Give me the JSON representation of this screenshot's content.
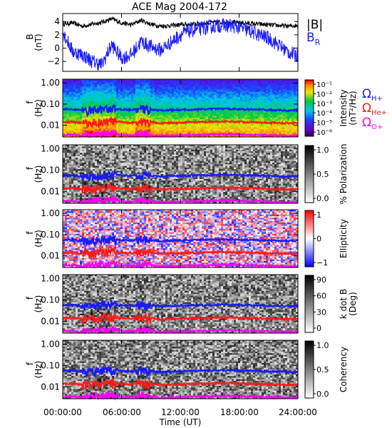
{
  "title": "ACE Mag 2004-172",
  "colors": {
    "blue": "#1a1aff",
    "red": "#ff1a1a",
    "magenta": "#ff00ff",
    "black": "#000000"
  },
  "legend": {
    "b_mag": "|B|",
    "b_r": "B",
    "b_r_sub": "R",
    "gyro": [
      {
        "symbol": "Ω",
        "sub": "H+",
        "color": "#1a1aff"
      },
      {
        "symbol": "Ω",
        "sub": "He+",
        "color": "#ff1a1a"
      },
      {
        "symbol": "Ω",
        "sub": "O+",
        "color": "#ff00ff"
      }
    ]
  },
  "x_axis": {
    "label": "Time (UT)",
    "ticks": [
      "00:00:00",
      "06:00:00",
      "12:00:00",
      "18:00:00",
      "24:00:00"
    ],
    "range_hours": [
      0,
      24
    ]
  },
  "panels": [
    {
      "id": "bfield",
      "ylabel": "B",
      "ylabel2": "(nT)",
      "ticks": [
        "4",
        "2",
        "0",
        "−2"
      ],
      "tick_values": [
        4,
        2,
        0,
        -2
      ],
      "ylim": [
        -3.5,
        5.2
      ]
    },
    {
      "id": "intensity",
      "ylabel": "f",
      "ylabel2": "(Hz)",
      "ticks": [
        "1.00",
        "0.10",
        "0.01"
      ],
      "cbar_label": "Intensity",
      "cbar_label2": "(nT²/Hz)",
      "cbar_ticks": [
        "10⁻¹",
        "10⁻²",
        "10⁻³",
        "10⁻⁴",
        "10⁻⁵",
        "10⁻⁶"
      ]
    },
    {
      "id": "polarization",
      "ylabel": "f",
      "ylabel2": "(Hz)",
      "ticks": [
        "1.00",
        "0.10",
        "0.01"
      ],
      "cbar_label": "% Polarization",
      "cbar_ticks": [
        "1.0",
        "0.5",
        "0.0"
      ]
    },
    {
      "id": "ellipticity",
      "ylabel": "f",
      "ylabel2": "(Hz)",
      "ticks": [
        "1.00",
        "0.10",
        "0.01"
      ],
      "cbar_label": "Ellipticity",
      "cbar_ticks": [
        "1",
        "0",
        "−1"
      ]
    },
    {
      "id": "kdotb",
      "ylabel": "f",
      "ylabel2": "(Hz)",
      "ticks": [
        "1.00",
        "0.10",
        "0.01"
      ],
      "cbar_label": "k dot B",
      "cbar_label2": "(Deg)",
      "cbar_ticks": [
        "90",
        "60",
        "30",
        "0"
      ]
    },
    {
      "id": "coherency",
      "ylabel": "f",
      "ylabel2": "(Hz)",
      "ticks": [
        "1.00",
        "0.10",
        "0.01"
      ],
      "cbar_label": "Coherency",
      "cbar_ticks": [
        "1.0",
        "0.5",
        "0.0"
      ]
    }
  ],
  "chart_data": {
    "type": "heatmap",
    "title": "ACE Mag 2004-172",
    "xlabel": "Time (UT)",
    "x_ticks": [
      "00:00:00",
      "06:00:00",
      "12:00:00",
      "18:00:00",
      "24:00:00"
    ],
    "xlim_hours": [
      0,
      24
    ],
    "line_panel": {
      "ylabel": "B (nT)",
      "ylim": [
        -3.5,
        5.2
      ],
      "series": [
        {
          "name": "|B|",
          "color": "#000000",
          "x_hours": [
            0,
            1,
            2,
            3,
            4,
            5,
            6,
            7,
            8,
            9,
            10,
            11,
            12,
            13,
            14,
            15,
            16,
            17,
            18,
            19,
            20,
            21,
            22,
            23,
            24
          ],
          "values": [
            3.6,
            3.8,
            3.3,
            3.6,
            3.9,
            4.4,
            3.8,
            3.5,
            4.2,
            3.6,
            3.3,
            3.4,
            3.5,
            3.6,
            3.7,
            3.8,
            3.9,
            3.9,
            3.8,
            3.7,
            3.6,
            3.5,
            3.4,
            3.3,
            3.4
          ]
        },
        {
          "name": "B_R",
          "color": "#1a1aff",
          "x_hours": [
            0,
            1,
            2,
            3,
            4,
            5,
            6,
            7,
            8,
            9,
            10,
            11,
            12,
            13,
            14,
            15,
            16,
            17,
            18,
            19,
            20,
            21,
            22,
            23,
            24
          ],
          "values": [
            2.5,
            -0.5,
            -1.0,
            -2.0,
            -2.5,
            0.5,
            -1.5,
            -1.0,
            1.0,
            0.2,
            -0.3,
            0.8,
            2.0,
            2.6,
            2.9,
            3.2,
            3.4,
            3.4,
            3.1,
            2.6,
            2.0,
            1.5,
            0.5,
            -0.6,
            -1.2
          ]
        }
      ]
    },
    "spectrogram_panels": {
      "ylabel": "f (Hz)",
      "y_ticks": [
        "1.00",
        "0.10",
        "0.01"
      ],
      "yscale": "log",
      "quantities": [
        "Intensity",
        "% Polarization",
        "Ellipticity",
        "k dot B",
        "Coherency"
      ],
      "cbar_ranges": {
        "Intensity": [
          1e-06,
          0.1
        ],
        "% Polarization": [
          0,
          1
        ],
        "Ellipticity": [
          -1,
          1
        ],
        "k dot B": [
          0,
          90
        ],
        "Coherency": [
          0,
          1
        ]
      }
    },
    "gyrofrequency_lines": {
      "x_hours": [
        0,
        1,
        2,
        3,
        4,
        5,
        6,
        7,
        8,
        9,
        10,
        11,
        12,
        13,
        14,
        15,
        16,
        17,
        18,
        19,
        20,
        21,
        22,
        23,
        24
      ],
      "series": [
        {
          "name": "Ω H+",
          "color": "#1a1aff",
          "values": [
            0.055,
            0.058,
            0.05,
            0.052,
            0.06,
            0.065,
            0.056,
            0.053,
            0.062,
            0.055,
            0.05,
            0.052,
            0.053,
            0.055,
            0.056,
            0.058,
            0.06,
            0.06,
            0.058,
            0.056,
            0.055,
            0.053,
            0.052,
            0.05,
            0.052
          ]
        },
        {
          "name": "Ω He+",
          "color": "#ff1a1a",
          "values": [
            0.014,
            0.0145,
            0.0125,
            0.013,
            0.015,
            0.016,
            0.014,
            0.013,
            0.0155,
            0.014,
            0.0125,
            0.013,
            0.013,
            0.014,
            0.014,
            0.0145,
            0.015,
            0.015,
            0.0145,
            0.014,
            0.014,
            0.013,
            0.013,
            0.0125,
            0.013
          ]
        },
        {
          "name": "Ω O+",
          "color": "#ff00ff",
          "values": [
            0.0035,
            0.0036,
            0.0031,
            0.0033,
            0.0038,
            0.0041,
            0.0035,
            0.0033,
            0.0039,
            0.0035,
            0.0031,
            0.0033,
            0.0033,
            0.0035,
            0.0035,
            0.0036,
            0.0038,
            0.0038,
            0.0036,
            0.0035,
            0.0035,
            0.0033,
            0.0033,
            0.0031,
            0.0033
          ]
        }
      ]
    }
  }
}
